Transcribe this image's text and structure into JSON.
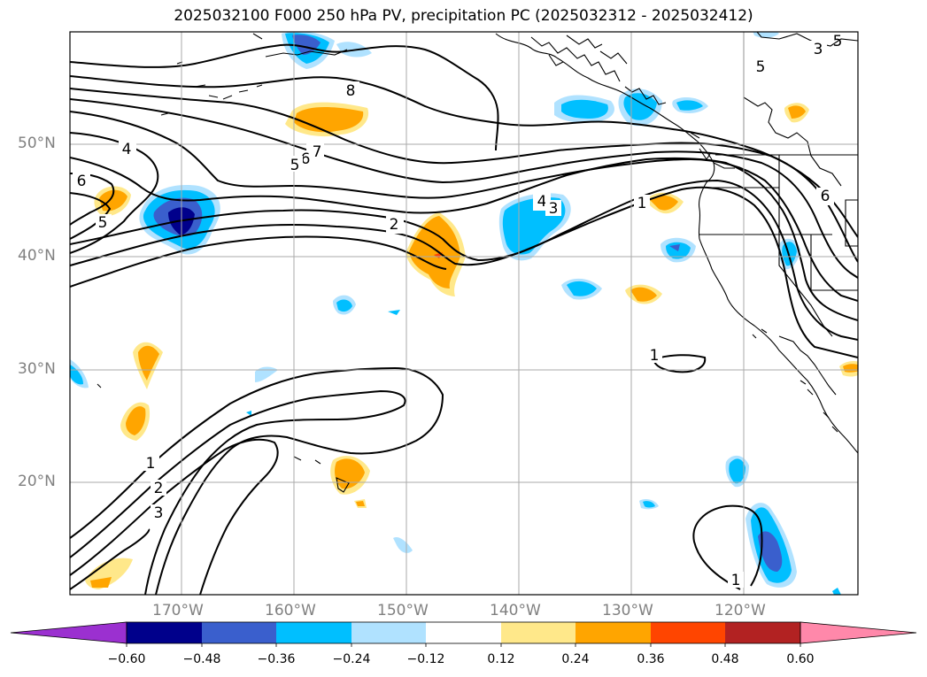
{
  "title": "2025032100 F000 250 hPa PV, precipitation PC (2025032312 - 2025032412)",
  "latitude_labels": [
    "50°N",
    "40°N",
    "30°N",
    "20°N"
  ],
  "longitude_labels": [
    "170°W",
    "160°W",
    "150°W",
    "140°W",
    "130°W",
    "120°W"
  ],
  "contour_labels": [
    "8",
    "7",
    "6",
    "5",
    "4",
    "6",
    "5",
    "4",
    "3",
    "2",
    "1",
    "6",
    "5",
    "1",
    "1",
    "2",
    "3",
    "1",
    "3",
    "5"
  ],
  "colorbar": {
    "tick_labels": [
      "−0.60",
      "−0.48",
      "−0.36",
      "−0.24",
      "−0.12",
      "0.12",
      "0.24",
      "0.36",
      "0.48",
      "0.60"
    ],
    "colors": [
      "#9b30d0",
      "#00008b",
      "#3a5fcd",
      "#00bfff",
      "#b0e2ff",
      "#ffffff",
      "#ffe88a",
      "#ffa500",
      "#ff4500",
      "#b22222",
      "#ff88aa"
    ]
  }
}
